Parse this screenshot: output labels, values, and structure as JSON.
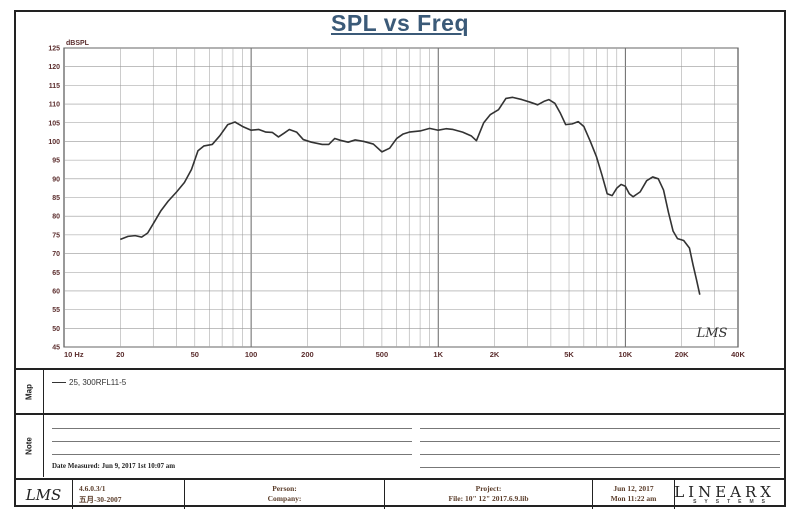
{
  "chart_data": {
    "type": "line",
    "title": "SPL vs Freq",
    "ylabel": "dBSPL",
    "xlabel": "",
    "x_scale": "log",
    "xlim": [
      10,
      40000
    ],
    "ylim": [
      45,
      125
    ],
    "grid": true,
    "y_ticks": [
      125,
      120,
      115,
      110,
      105,
      100,
      95,
      90,
      85,
      80,
      75,
      70,
      65,
      60,
      55,
      50,
      45
    ],
    "x_ticks": [
      {
        "value": 10,
        "label": "10 Hz"
      },
      {
        "value": 20,
        "label": "20"
      },
      {
        "value": 50,
        "label": "50"
      },
      {
        "value": 100,
        "label": "100"
      },
      {
        "value": 200,
        "label": "200"
      },
      {
        "value": 500,
        "label": "500"
      },
      {
        "value": 1000,
        "label": "1K"
      },
      {
        "value": 2000,
        "label": "2K"
      },
      {
        "value": 5000,
        "label": "5K"
      },
      {
        "value": 10000,
        "label": "10K"
      },
      {
        "value": 20000,
        "label": "20K"
      },
      {
        "value": 40000,
        "label": "40K"
      }
    ],
    "series": [
      {
        "name": "25, 300RFL11-5",
        "color": "#333333",
        "points": [
          [
            20,
            73.8
          ],
          [
            22,
            74.6
          ],
          [
            24,
            74.8
          ],
          [
            26,
            74.4
          ],
          [
            28,
            75.5
          ],
          [
            30,
            78
          ],
          [
            33,
            81.5
          ],
          [
            36,
            84
          ],
          [
            40,
            86.5
          ],
          [
            44,
            89
          ],
          [
            48,
            92.5
          ],
          [
            52,
            97.5
          ],
          [
            56,
            98.8
          ],
          [
            62,
            99.2
          ],
          [
            68,
            101.5
          ],
          [
            75,
            104.5
          ],
          [
            82,
            105.2
          ],
          [
            90,
            104
          ],
          [
            100,
            103
          ],
          [
            110,
            103.2
          ],
          [
            120,
            102.5
          ],
          [
            130,
            102.4
          ],
          [
            140,
            101.2
          ],
          [
            150,
            102.2
          ],
          [
            160,
            103.2
          ],
          [
            175,
            102.5
          ],
          [
            190,
            100.5
          ],
          [
            210,
            99.8
          ],
          [
            240,
            99.2
          ],
          [
            260,
            99.2
          ],
          [
            280,
            100.8
          ],
          [
            300,
            100.3
          ],
          [
            330,
            99.8
          ],
          [
            360,
            100.4
          ],
          [
            400,
            100
          ],
          [
            450,
            99.3
          ],
          [
            500,
            97.2
          ],
          [
            550,
            98.2
          ],
          [
            600,
            100.8
          ],
          [
            650,
            102
          ],
          [
            700,
            102.5
          ],
          [
            800,
            102.8
          ],
          [
            900,
            103.5
          ],
          [
            1000,
            103
          ],
          [
            1100,
            103.4
          ],
          [
            1200,
            103.2
          ],
          [
            1350,
            102.5
          ],
          [
            1500,
            101.5
          ],
          [
            1600,
            100.2
          ],
          [
            1750,
            105
          ],
          [
            1900,
            107.2
          ],
          [
            2100,
            108.5
          ],
          [
            2300,
            111.5
          ],
          [
            2500,
            111.8
          ],
          [
            2800,
            111.2
          ],
          [
            3100,
            110.5
          ],
          [
            3400,
            109.8
          ],
          [
            3700,
            110.8
          ],
          [
            3900,
            111.2
          ],
          [
            4200,
            110.2
          ],
          [
            4500,
            107.5
          ],
          [
            4800,
            104.5
          ],
          [
            5200,
            104.7
          ],
          [
            5600,
            105.3
          ],
          [
            6000,
            104
          ],
          [
            6500,
            100
          ],
          [
            7000,
            96
          ],
          [
            7500,
            91
          ],
          [
            8000,
            86
          ],
          [
            8500,
            85.5
          ],
          [
            9000,
            87.5
          ],
          [
            9500,
            88.5
          ],
          [
            10000,
            88
          ],
          [
            10500,
            86
          ],
          [
            11000,
            85.2
          ],
          [
            12000,
            86.5
          ],
          [
            13000,
            89.5
          ],
          [
            14000,
            90.5
          ],
          [
            15000,
            90
          ],
          [
            16000,
            87
          ],
          [
            17000,
            81
          ],
          [
            18000,
            76
          ],
          [
            19000,
            74
          ],
          [
            20500,
            73.5
          ],
          [
            22000,
            71.5
          ],
          [
            23000,
            67
          ],
          [
            24000,
            63
          ],
          [
            25000,
            59
          ]
        ]
      }
    ]
  },
  "watermark": "LMS",
  "sections": {
    "legend_label": "Map",
    "notes_label": "Note"
  },
  "notes": {
    "date_measured": "Date Measured: Jun 9, 2017  1st 10:07 am"
  },
  "footer": {
    "version_line1": "4.6.0.3/1",
    "version_line2": "五月-30-2007",
    "person_label": "Person:",
    "company_label": "Company:",
    "project_label": "Project:",
    "file_label": "File: 10\" 12\" 2017.6.9.lib",
    "date_line1": "Jun 12, 2017",
    "date_line2": "Mon 11:22 am",
    "logo_text": "LMS",
    "brand": "LINEARX",
    "brand_sub": "SYSTEMS"
  }
}
